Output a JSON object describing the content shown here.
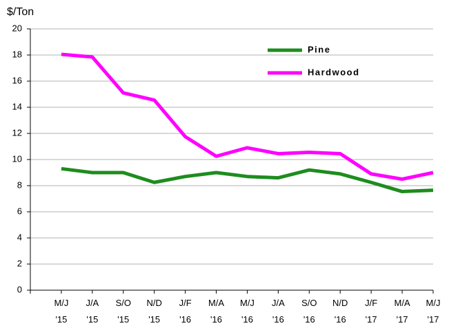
{
  "chart_data": {
    "type": "line",
    "y_label": "$/Ton",
    "categories": [
      "M/J '15",
      "J/A '15",
      "S/O '15",
      "N/D '15",
      "J/F '16",
      "M/A '16",
      "M/J '16",
      "J/A '16",
      "S/O '16",
      "N/D '16",
      "J/F '17",
      "M/A '17",
      "M/J '17"
    ],
    "series": [
      {
        "name": "Pine",
        "color": "#1e8c1e",
        "values": [
          9.3,
          9.0,
          9.0,
          8.25,
          8.7,
          9.0,
          8.7,
          8.6,
          9.2,
          8.9,
          8.25,
          7.55,
          7.65
        ]
      },
      {
        "name": "Hardwood",
        "color": "#ff00ff",
        "values": [
          18.05,
          17.85,
          15.1,
          14.55,
          11.75,
          10.25,
          10.9,
          10.45,
          10.55,
          10.45,
          8.9,
          8.5,
          9.0
        ]
      }
    ],
    "ylim": [
      0,
      20
    ],
    "yticks": [
      0,
      2,
      4,
      6,
      8,
      10,
      12,
      14,
      16,
      18,
      20
    ],
    "grid": true
  }
}
